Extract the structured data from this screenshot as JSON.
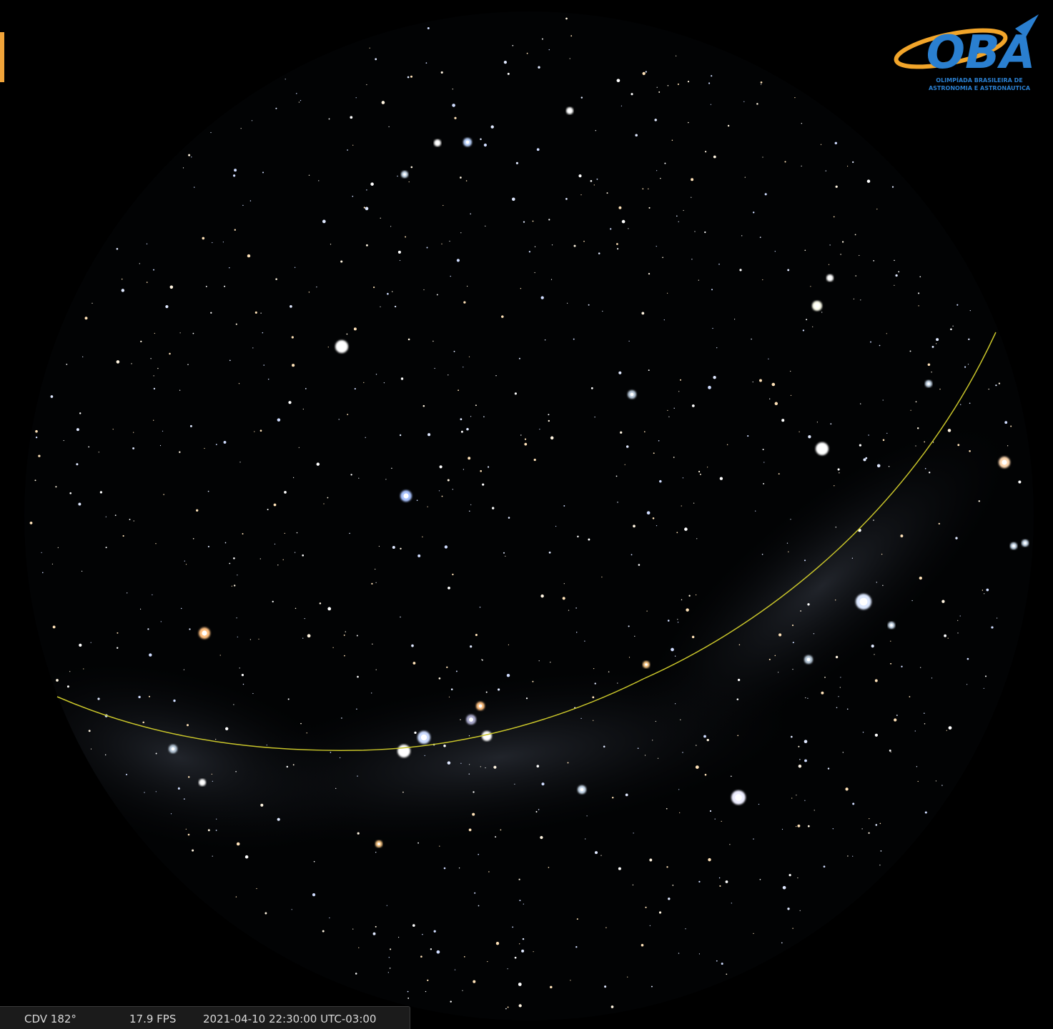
{
  "logo": {
    "title": "OBA",
    "subtitle_line1": "OLIMPÍADA BRASILEIRA DE",
    "subtitle_line2": "ASTRONOMIA E ASTRONÁUTICA"
  },
  "status_bar": {
    "fov": "CDV 182°",
    "fps": "17.9 FPS",
    "datetime": "2021-04-10 22:30:00 UTC-03:00"
  }
}
